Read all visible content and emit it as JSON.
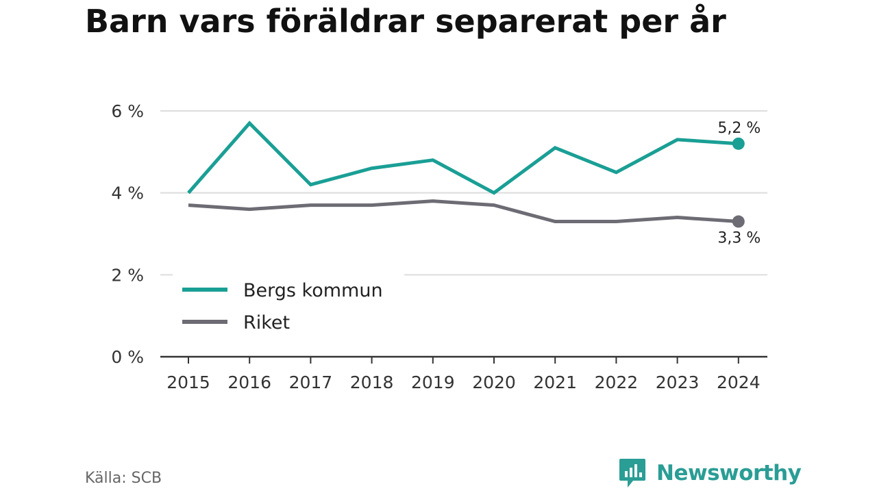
{
  "title": "Barn vars föräldrar separerat per år",
  "source": "Källa: SCB",
  "logo": {
    "text": "Newsworthy",
    "icon": "bar-chart-speech-bubble-icon"
  },
  "colors": {
    "bergs": "#1a9f95",
    "riket": "#6d6b73",
    "grid": "#dddddd",
    "axis": "#333333",
    "brand": "#2a9d95"
  },
  "chart_data": {
    "type": "line",
    "title": "Barn vars föräldrar separerat per år",
    "x": [
      "2015",
      "2016",
      "2017",
      "2018",
      "2019",
      "2020",
      "2021",
      "2022",
      "2023",
      "2024"
    ],
    "series": [
      {
        "name": "Bergs kommun",
        "color": "#1a9f95",
        "values": [
          4.0,
          5.7,
          4.2,
          4.6,
          4.8,
          4.0,
          5.1,
          4.5,
          5.3,
          5.2
        ],
        "end_label": "5,2 %"
      },
      {
        "name": "Riket",
        "color": "#6d6b73",
        "values": [
          3.7,
          3.6,
          3.7,
          3.7,
          3.8,
          3.7,
          3.3,
          3.3,
          3.4,
          3.3
        ],
        "end_label": "3,3 %"
      }
    ],
    "y_ticks": [
      0,
      2,
      4,
      6
    ],
    "y_tick_labels": [
      "0 %",
      "2 %",
      "4 %",
      "6 %"
    ],
    "ylim": [
      0,
      6
    ],
    "grid": true,
    "legend_position": "bottom-left"
  }
}
